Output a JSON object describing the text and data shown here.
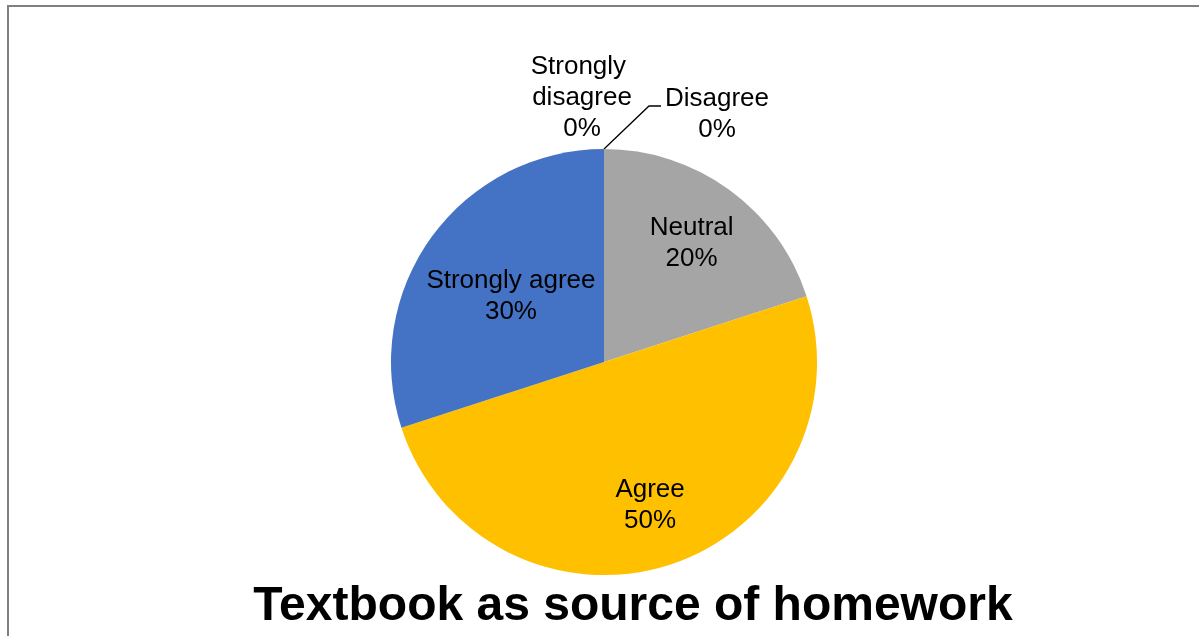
{
  "chart_data": {
    "type": "pie",
    "title": "Textbook as source of homework",
    "categories": [
      "Strongly disagree",
      "Disagree",
      "Neutral",
      "Agree",
      "Strongly agree"
    ],
    "values": [
      0,
      0,
      20,
      50,
      30
    ],
    "colors": [
      null,
      null,
      "#a5a5a5",
      "#ffc000",
      "#4472c4"
    ],
    "value_labels": [
      "0%",
      "0%",
      "20%",
      "50%",
      "30%"
    ]
  }
}
